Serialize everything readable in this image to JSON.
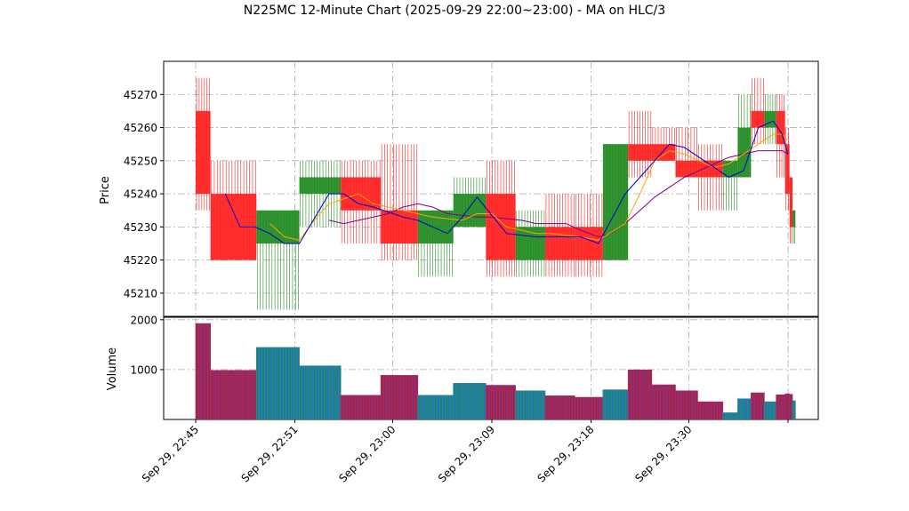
{
  "chart_data": {
    "type": "candlestick",
    "title": "N225MC 12-Minute Chart (2025-09-29 22:00~23:00) - MA on HLC/3",
    "ylabel_price": "Price",
    "ylabel_volume": "Volume",
    "price_ylim": [
      45203,
      45280
    ],
    "price_yticks": [
      45210,
      45220,
      45230,
      45240,
      45250,
      45260,
      45270
    ],
    "volume_ylim": [
      0,
      2050
    ],
    "volume_yticks": [
      1000,
      2000
    ],
    "x_range": [
      0,
      38.4
    ],
    "xticks": [
      {
        "x": 2,
        "label": "Sep 29, 22:45"
      },
      {
        "x": 8.7,
        "label": "Sep 29, 22:51"
      },
      {
        "x": 15.3,
        "label": "Sep 29, 23:00"
      },
      {
        "x": 22,
        "label": "Sep 29, 23:09"
      },
      {
        "x": 28.7,
        "label": "Sep 29, 23:18"
      },
      {
        "x": 35.3,
        "label": "Sep 29, 23:30"
      },
      {
        "x": 42,
        "label": ""
      }
    ],
    "grid": true,
    "colors": {
      "up": "#228b22",
      "down": "#ff2020",
      "volume_up": "#1f77b4",
      "volume_down": "#8b2a6e",
      "ma_short": "#0000cd",
      "ma_mid": "#ffa500",
      "ma_long": "#800080"
    },
    "candles": [
      {
        "x0": 2.0,
        "x1": 3.0,
        "open": 45265,
        "close": 45240,
        "high": 45275,
        "low": 45235,
        "volume": 1930
      },
      {
        "x0": 3.0,
        "x1": 6.1,
        "open": 45240,
        "close": 45220,
        "high": 45250,
        "low": 45220,
        "volume": 990
      },
      {
        "x0": 6.1,
        "x1": 9.0,
        "open": 45225,
        "close": 45235,
        "high": 45235,
        "low": 45205,
        "volume": 1450
      },
      {
        "x0": 9.0,
        "x1": 11.8,
        "open": 45240,
        "close": 45245,
        "high": 45250,
        "low": 45230,
        "volume": 1080
      },
      {
        "x0": 11.8,
        "x1": 14.5,
        "open": 45245,
        "close": 45235,
        "high": 45250,
        "low": 45225,
        "volume": 490
      },
      {
        "x0": 14.5,
        "x1": 17.0,
        "open": 45235,
        "close": 45225,
        "high": 45255,
        "low": 45220,
        "volume": 890
      },
      {
        "x0": 17.0,
        "x1": 19.4,
        "open": 45225,
        "close": 45235,
        "high": 45235,
        "low": 45215,
        "volume": 490
      },
      {
        "x0": 19.4,
        "x1": 21.6,
        "open": 45230,
        "close": 45240,
        "high": 45245,
        "low": 45230,
        "volume": 730
      },
      {
        "x0": 21.6,
        "x1": 23.6,
        "open": 45240,
        "close": 45220,
        "high": 45250,
        "low": 45215,
        "volume": 690
      },
      {
        "x0": 23.6,
        "x1": 25.6,
        "open": 45220,
        "close": 45230,
        "high": 45235,
        "low": 45215,
        "volume": 580
      },
      {
        "x0": 25.6,
        "x1": 27.6,
        "open": 45230,
        "close": 45220,
        "high": 45240,
        "low": 45215,
        "volume": 480
      },
      {
        "x0": 27.6,
        "x1": 29.5,
        "open": 45230,
        "close": 45220,
        "high": 45240,
        "low": 45215,
        "volume": 450
      },
      {
        "x0": 29.5,
        "x1": 31.2,
        "open": 45220,
        "close": 45255,
        "high": 45255,
        "low": 45220,
        "volume": 600
      },
      {
        "x0": 31.2,
        "x1": 32.8,
        "open": 45255,
        "close": 45250,
        "high": 45265,
        "low": 45245,
        "volume": 1000
      },
      {
        "x0": 32.8,
        "x1": 34.4,
        "open": 45255,
        "close": 45250,
        "high": 45260,
        "low": 45250,
        "volume": 700
      },
      {
        "x0": 34.4,
        "x1": 35.9,
        "open": 45250,
        "close": 45245,
        "high": 45260,
        "low": 45245,
        "volume": 580
      },
      {
        "x0": 35.9,
        "x1": 37.6,
        "open": 45250,
        "close": 45245,
        "high": 45255,
        "low": 45235,
        "volume": 360
      },
      {
        "x0": 37.6,
        "x1": 38.6,
        "open": 45245,
        "close": 45250,
        "high": 45250,
        "low": 45235,
        "volume": 140
      },
      {
        "x0": 38.6,
        "x1": 39.5,
        "open": 45245,
        "close": 45260,
        "high": 45270,
        "low": 45245,
        "volume": 420
      },
      {
        "x0": 39.5,
        "x1": 40.4,
        "open": 45265,
        "close": 45260,
        "high": 45275,
        "low": 45255,
        "volume": 540
      },
      {
        "x0": 40.4,
        "x1": 41.2,
        "open": 45260,
        "close": 45265,
        "high": 45270,
        "low": 45255,
        "volume": 360
      },
      {
        "x0": 41.2,
        "x1": 41.8,
        "open": 45265,
        "close": 45255,
        "high": 45270,
        "low": 45245,
        "volume": 500
      },
      {
        "x0": 41.8,
        "x1": 42.1,
        "open": 45255,
        "close": 45240,
        "high": 45260,
        "low": 45235,
        "volume": 520
      },
      {
        "x0": 42.1,
        "x1": 42.3,
        "open": 45245,
        "close": 45230,
        "high": 45245,
        "low": 45225,
        "volume": 510
      },
      {
        "x0": 42.3,
        "x1": 42.5,
        "open": 45230,
        "close": 45235,
        "high": 45235,
        "low": 45225,
        "volume": 380
      }
    ],
    "ma_short": [
      [
        4,
        45240
      ],
      [
        5,
        45230
      ],
      [
        6,
        45230
      ],
      [
        7,
        45228
      ],
      [
        8,
        45225
      ],
      [
        9,
        45225
      ],
      [
        11,
        45240
      ],
      [
        12,
        45240
      ],
      [
        13,
        45237
      ],
      [
        14,
        45236
      ],
      [
        16,
        45233
      ],
      [
        17,
        45232
      ],
      [
        19,
        45228
      ],
      [
        20,
        45233
      ],
      [
        21,
        45239
      ],
      [
        23,
        45228
      ],
      [
        25,
        45227
      ],
      [
        26,
        45227
      ],
      [
        28,
        45227
      ],
      [
        29.2,
        45225
      ],
      [
        31,
        45240
      ],
      [
        32,
        45245
      ],
      [
        33,
        45250
      ],
      [
        34,
        45255
      ],
      [
        35,
        45254
      ],
      [
        36,
        45251
      ],
      [
        37,
        45248
      ],
      [
        38,
        45245
      ],
      [
        39,
        45247
      ],
      [
        40,
        45260
      ],
      [
        41,
        45262
      ],
      [
        41.6,
        45258
      ],
      [
        42,
        45252
      ]
    ],
    "ma_mid": [
      [
        7,
        45231
      ],
      [
        8,
        45227
      ],
      [
        9,
        45226
      ],
      [
        10,
        45232
      ],
      [
        11,
        45237
      ],
      [
        13,
        45240
      ],
      [
        14,
        45237
      ],
      [
        15,
        45236
      ],
      [
        17,
        45234
      ],
      [
        18,
        45233
      ],
      [
        20,
        45232
      ],
      [
        21,
        45234
      ],
      [
        22,
        45234
      ],
      [
        23,
        45230
      ],
      [
        24,
        45229
      ],
      [
        25,
        45228
      ],
      [
        26,
        45228
      ],
      [
        28,
        45227
      ],
      [
        29.2,
        45226
      ],
      [
        31,
        45231
      ],
      [
        32,
        45240
      ],
      [
        33,
        45250
      ],
      [
        34,
        45253
      ],
      [
        35,
        45252
      ],
      [
        36,
        45250
      ],
      [
        37,
        45248
      ],
      [
        38,
        45249
      ],
      [
        39,
        45252
      ],
      [
        40,
        45255
      ],
      [
        41,
        45258
      ],
      [
        41.6,
        45258
      ],
      [
        42,
        45256
      ]
    ],
    "ma_long": [
      [
        11,
        45232
      ],
      [
        12,
        45231
      ],
      [
        13,
        45232
      ],
      [
        15,
        45234
      ],
      [
        16,
        45236
      ],
      [
        17,
        45237
      ],
      [
        18,
        45236
      ],
      [
        19,
        45234
      ],
      [
        21,
        45233
      ],
      [
        22,
        45233
      ],
      [
        24,
        45232
      ],
      [
        25,
        45231
      ],
      [
        27,
        45231
      ],
      [
        28,
        45229
      ],
      [
        29.2,
        45227
      ],
      [
        30,
        45228
      ],
      [
        31,
        45231
      ],
      [
        32,
        45235
      ],
      [
        33,
        45239
      ],
      [
        34,
        45242
      ],
      [
        35,
        45245
      ],
      [
        36,
        45247
      ],
      [
        37,
        45249
      ],
      [
        38,
        45251
      ],
      [
        39,
        45252
      ],
      [
        40,
        45253
      ],
      [
        41,
        45253
      ],
      [
        41.6,
        45253
      ],
      [
        42,
        45252
      ]
    ]
  }
}
